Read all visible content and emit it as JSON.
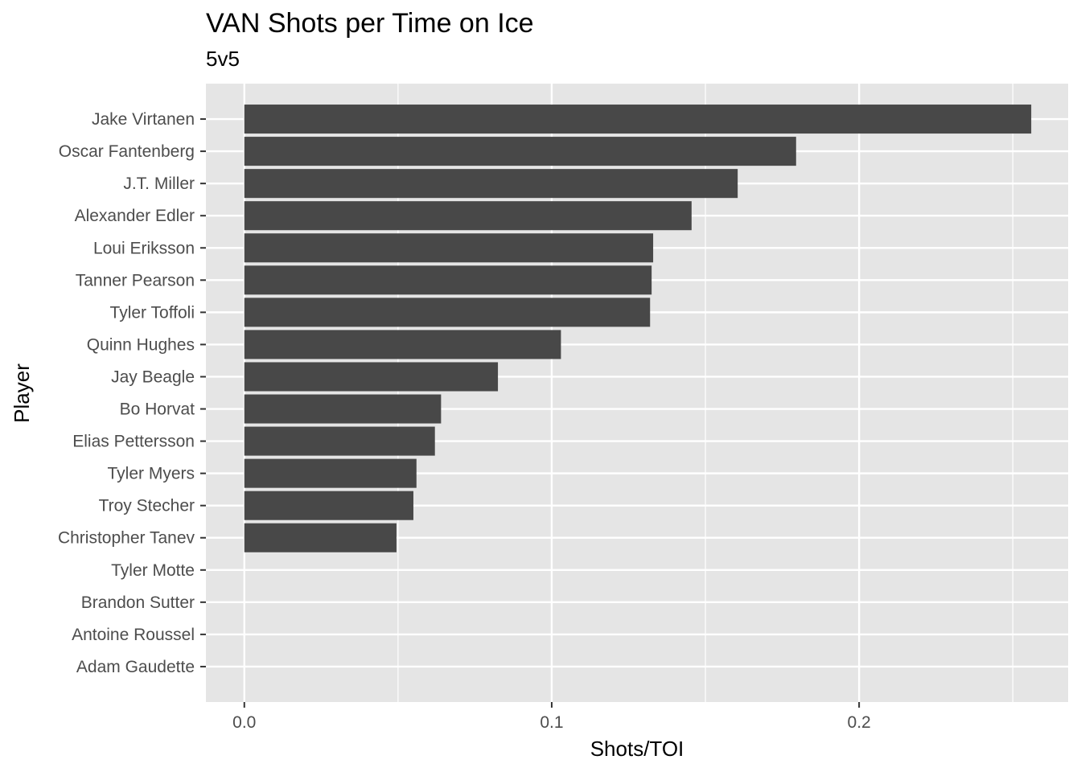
{
  "chart_data": {
    "type": "bar",
    "orientation": "horizontal",
    "title": "VAN Shots per Time on Ice",
    "subtitle": "5v5",
    "xlabel": "Shots/TOI",
    "ylabel": "Player",
    "xlim": [
      -0.0125,
      0.268
    ],
    "x_ticks": [
      0.0,
      0.1,
      0.2
    ],
    "x_tick_labels": [
      "0.0",
      "0.1",
      "0.2"
    ],
    "grid": true,
    "legend": "none",
    "colors": {
      "panel": "#e5e5e5",
      "bar": "#484848",
      "grid": "#ffffff"
    },
    "categories": [
      "Jake Virtanen",
      "Oscar Fantenberg",
      "J.T. Miller",
      "Alexander Edler",
      "Loui Eriksson",
      "Tanner Pearson",
      "Tyler Toffoli",
      "Quinn Hughes",
      "Jay Beagle",
      "Bo Horvat",
      "Elias Pettersson",
      "Tyler Myers",
      "Troy Stecher",
      "Christopher Tanev",
      "Tyler Motte",
      "Brandon Sutter",
      "Antoine Roussel",
      "Adam Gaudette"
    ],
    "values": [
      0.256,
      0.1795,
      0.1605,
      0.1455,
      0.133,
      0.1325,
      0.132,
      0.103,
      0.0825,
      0.064,
      0.062,
      0.056,
      0.055,
      0.0495,
      0,
      0,
      0,
      0
    ]
  }
}
